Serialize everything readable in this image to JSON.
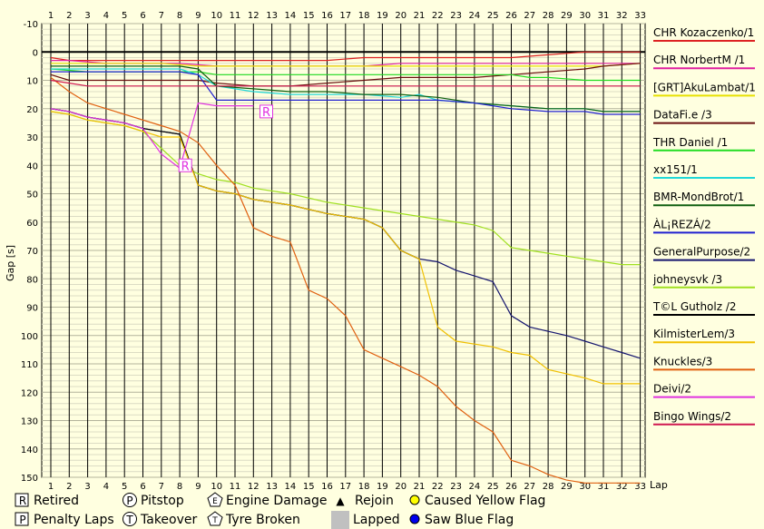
{
  "chart_data": {
    "type": "line",
    "title": "",
    "xlabel": "Lap",
    "ylabel": "Gap [s]",
    "xlim": [
      1,
      33
    ],
    "ylim": [
      -10,
      150
    ],
    "x_ticks": [
      1,
      2,
      3,
      4,
      5,
      6,
      7,
      8,
      9,
      10,
      11,
      12,
      13,
      14,
      15,
      16,
      17,
      18,
      19,
      20,
      21,
      22,
      23,
      24,
      25,
      26,
      27,
      28,
      29,
      30,
      31,
      32,
      33
    ],
    "y_ticks": [
      -10,
      0,
      10,
      20,
      30,
      40,
      50,
      60,
      70,
      80,
      90,
      100,
      110,
      120,
      130,
      140,
      150
    ],
    "series": [
      {
        "name": "CHR Kozaczenko/1",
        "color": "#dd2222",
        "x": [
          1,
          2,
          4,
          6,
          8,
          10,
          12,
          14,
          16,
          18,
          20,
          22,
          24,
          26,
          28,
          29,
          30,
          31,
          32,
          33
        ],
        "y": [
          2,
          3,
          3,
          3,
          3,
          3,
          3,
          3,
          3,
          2,
          2,
          2,
          2,
          2,
          1,
          0.5,
          0,
          0,
          0,
          0
        ]
      },
      {
        "name": "CHR NorbertM /1",
        "color": "#e020a0",
        "x": [
          1,
          2,
          4,
          6,
          8,
          10,
          12,
          14,
          16,
          18,
          20,
          22,
          24,
          26,
          28,
          30,
          31,
          33
        ],
        "y": [
          3,
          3,
          4,
          4,
          4,
          5,
          5,
          5,
          5,
          5,
          4,
          4,
          4,
          4,
          4,
          4,
          4,
          4
        ]
      },
      {
        "name": "[GRT]AkuLambat/1",
        "color": "#e8e000",
        "x": [
          1,
          3,
          5,
          7,
          9,
          11,
          13,
          15,
          17,
          19,
          21,
          23,
          25,
          27,
          29,
          31,
          33
        ],
        "y": [
          4,
          4,
          4,
          4,
          5,
          5,
          5,
          5,
          5,
          5,
          5,
          5,
          5,
          5,
          5,
          5,
          4
        ]
      },
      {
        "name": "DataFi.e /3",
        "color": "#6a1010",
        "x": [
          1,
          2,
          3,
          5,
          7,
          9,
          10,
          12,
          14,
          16,
          18,
          20,
          22,
          24,
          26,
          28,
          30,
          31,
          33
        ],
        "y": [
          8,
          10,
          10,
          10,
          10,
          10,
          11,
          12,
          12,
          11,
          10,
          9,
          9,
          9,
          8,
          7,
          6,
          5,
          4
        ]
      },
      {
        "name": "THR Daniel /1",
        "color": "#22dd22",
        "x": [
          1,
          3,
          5,
          7,
          9,
          10,
          12,
          14,
          16,
          18,
          20,
          22,
          24,
          26,
          27,
          28,
          30,
          31,
          33
        ],
        "y": [
          6,
          7,
          7,
          7,
          7,
          8,
          8,
          8,
          8,
          8,
          8,
          8,
          8,
          8,
          9,
          9,
          10,
          10,
          10
        ]
      },
      {
        "name": "xx151/1",
        "color": "#20d8d8",
        "x": [
          1,
          3,
          5,
          7,
          8,
          9,
          10,
          12,
          14,
          16,
          18,
          20,
          21,
          22,
          24,
          26,
          28,
          30,
          31,
          33
        ],
        "y": [
          6,
          6,
          6,
          6,
          6,
          8,
          12,
          14,
          15,
          15,
          15,
          16,
          15,
          17,
          18,
          19,
          20,
          20,
          21,
          21
        ]
      },
      {
        "name": "BMR-MondBrot/1",
        "color": "#106010",
        "x": [
          1,
          3,
          5,
          7,
          8,
          9,
          10,
          12,
          14,
          16,
          18,
          20,
          22,
          24,
          26,
          28,
          30,
          31,
          33
        ],
        "y": [
          5,
          5,
          5,
          5,
          5,
          6,
          12,
          13,
          14,
          14,
          15,
          15,
          16,
          18,
          19,
          20,
          20,
          21,
          21
        ]
      },
      {
        "name": "ÀL¡REZÁ/2",
        "color": "#2020d0",
        "x": [
          1,
          3,
          5,
          7,
          8,
          9,
          10,
          11,
          12,
          14,
          16,
          18,
          20,
          22,
          24,
          26,
          28,
          30,
          31,
          32,
          33
        ],
        "y": [
          7,
          7,
          7,
          7,
          7,
          8,
          17,
          17,
          17,
          17,
          17,
          17,
          17,
          17,
          18,
          20,
          21,
          21,
          22,
          22,
          22
        ]
      },
      {
        "name": "GeneralPurpose/2",
        "color": "#14146e",
        "x": [
          1,
          2,
          3,
          5,
          6,
          7,
          8,
          9,
          10,
          11,
          12,
          14,
          16,
          18,
          19,
          20,
          21,
          22,
          23,
          24,
          25,
          26,
          27,
          29,
          30,
          31,
          32,
          33
        ],
        "y": [
          20,
          21,
          23,
          25,
          27,
          28,
          29,
          47,
          49,
          50,
          52,
          54,
          57,
          59,
          62,
          70,
          73,
          74,
          77,
          79,
          81,
          93,
          97,
          100,
          102,
          104,
          106,
          108
        ]
      },
      {
        "name": "johneysvk /3",
        "color": "#a0e020",
        "x": [
          1,
          2,
          3,
          5,
          6,
          7,
          8,
          9,
          10,
          11,
          12,
          14,
          16,
          18,
          20,
          22,
          24,
          25,
          26,
          27,
          28,
          29,
          30,
          31,
          32,
          33
        ],
        "y": [
          21,
          22,
          24,
          26,
          28,
          34,
          40,
          43,
          45,
          46,
          48,
          50,
          53,
          55,
          57,
          59,
          61,
          63,
          69,
          70,
          71,
          72,
          73,
          74,
          75,
          75
        ]
      },
      {
        "name": "T©L Gutholz /2",
        "color": "#000000",
        "x": [
          1,
          2,
          3,
          5,
          6,
          7,
          8,
          9,
          10,
          11,
          12,
          14,
          16,
          18,
          19,
          20,
          21
        ],
        "y": [
          20,
          21,
          23,
          25,
          27,
          28,
          29,
          47,
          49,
          50,
          52,
          54,
          57,
          59,
          62,
          70,
          73
        ]
      },
      {
        "name": "KilmisterLem/3",
        "color": "#f0c000",
        "x": [
          1,
          2,
          3,
          5,
          6,
          7,
          8,
          9,
          10,
          11,
          12,
          14,
          16,
          18,
          19,
          20,
          21,
          22,
          23,
          25,
          26,
          27,
          28,
          30,
          31,
          33
        ],
        "y": [
          21,
          22,
          24,
          26,
          28,
          30,
          30,
          47,
          49,
          50,
          52,
          54,
          57,
          59,
          62,
          70,
          73,
          97,
          102,
          104,
          106,
          107,
          112,
          115,
          117,
          117
        ]
      },
      {
        "name": "Knuckles/3",
        "color": "#e06010",
        "x": [
          1,
          2,
          3,
          5,
          7,
          8,
          9,
          10,
          11,
          12,
          13,
          14,
          15,
          16,
          17,
          18,
          19,
          20,
          21,
          22,
          23,
          24,
          25,
          26,
          27,
          28,
          29,
          30,
          31,
          33
        ],
        "y": [
          9,
          14,
          18,
          22,
          26,
          28,
          32,
          40,
          47,
          62,
          65,
          67,
          84,
          87,
          93,
          105,
          108,
          111,
          114,
          118,
          125,
          130,
          134,
          144,
          146,
          149,
          151,
          153,
          154,
          155
        ]
      },
      {
        "name": "Deivi/2",
        "color": "#e030e0",
        "x": [
          1,
          2,
          3,
          5,
          6,
          7,
          8,
          9,
          10,
          11,
          12
        ],
        "y": [
          20,
          21,
          23,
          25,
          27,
          36,
          41,
          18,
          19,
          19,
          19
        ]
      },
      {
        "name": "Bingo Wings/2",
        "color": "#d01850",
        "x": [
          1,
          2,
          3,
          5,
          7,
          9,
          11,
          13,
          15,
          17,
          19,
          21,
          23,
          25,
          27,
          29,
          31,
          33
        ],
        "y": [
          10,
          11,
          12,
          12,
          12,
          12,
          12,
          12,
          12,
          12,
          12,
          12,
          12,
          12,
          12,
          12,
          12,
          12
        ]
      }
    ],
    "markers": [
      {
        "type": "R",
        "x": 12.7,
        "y": 21
      },
      {
        "type": "R",
        "x": 8.3,
        "y": 40
      }
    ],
    "legend_position": "right"
  },
  "status_legend": [
    {
      "sym": "R",
      "shape": "box",
      "label": "Retired"
    },
    {
      "sym": "P",
      "shape": "circle",
      "label": "Pitstop"
    },
    {
      "sym": "E",
      "shape": "pentagon",
      "label": "Engine Damage"
    },
    {
      "sym": "▲",
      "shape": "triangle",
      "label": "Rejoin"
    },
    {
      "sym": "",
      "shape": "yellow-dot",
      "label": "Caused Yellow Flag"
    },
    {
      "sym": "P",
      "shape": "box",
      "label": "Penalty Laps"
    },
    {
      "sym": "T",
      "shape": "circle",
      "label": "Takeover"
    },
    {
      "sym": "T",
      "shape": "pentagon",
      "label": "Tyre Broken"
    },
    {
      "sym": "",
      "shape": "gray-box",
      "label": "Lapped"
    },
    {
      "sym": "",
      "shape": "blue-dot",
      "label": "Saw Blue Flag"
    }
  ]
}
